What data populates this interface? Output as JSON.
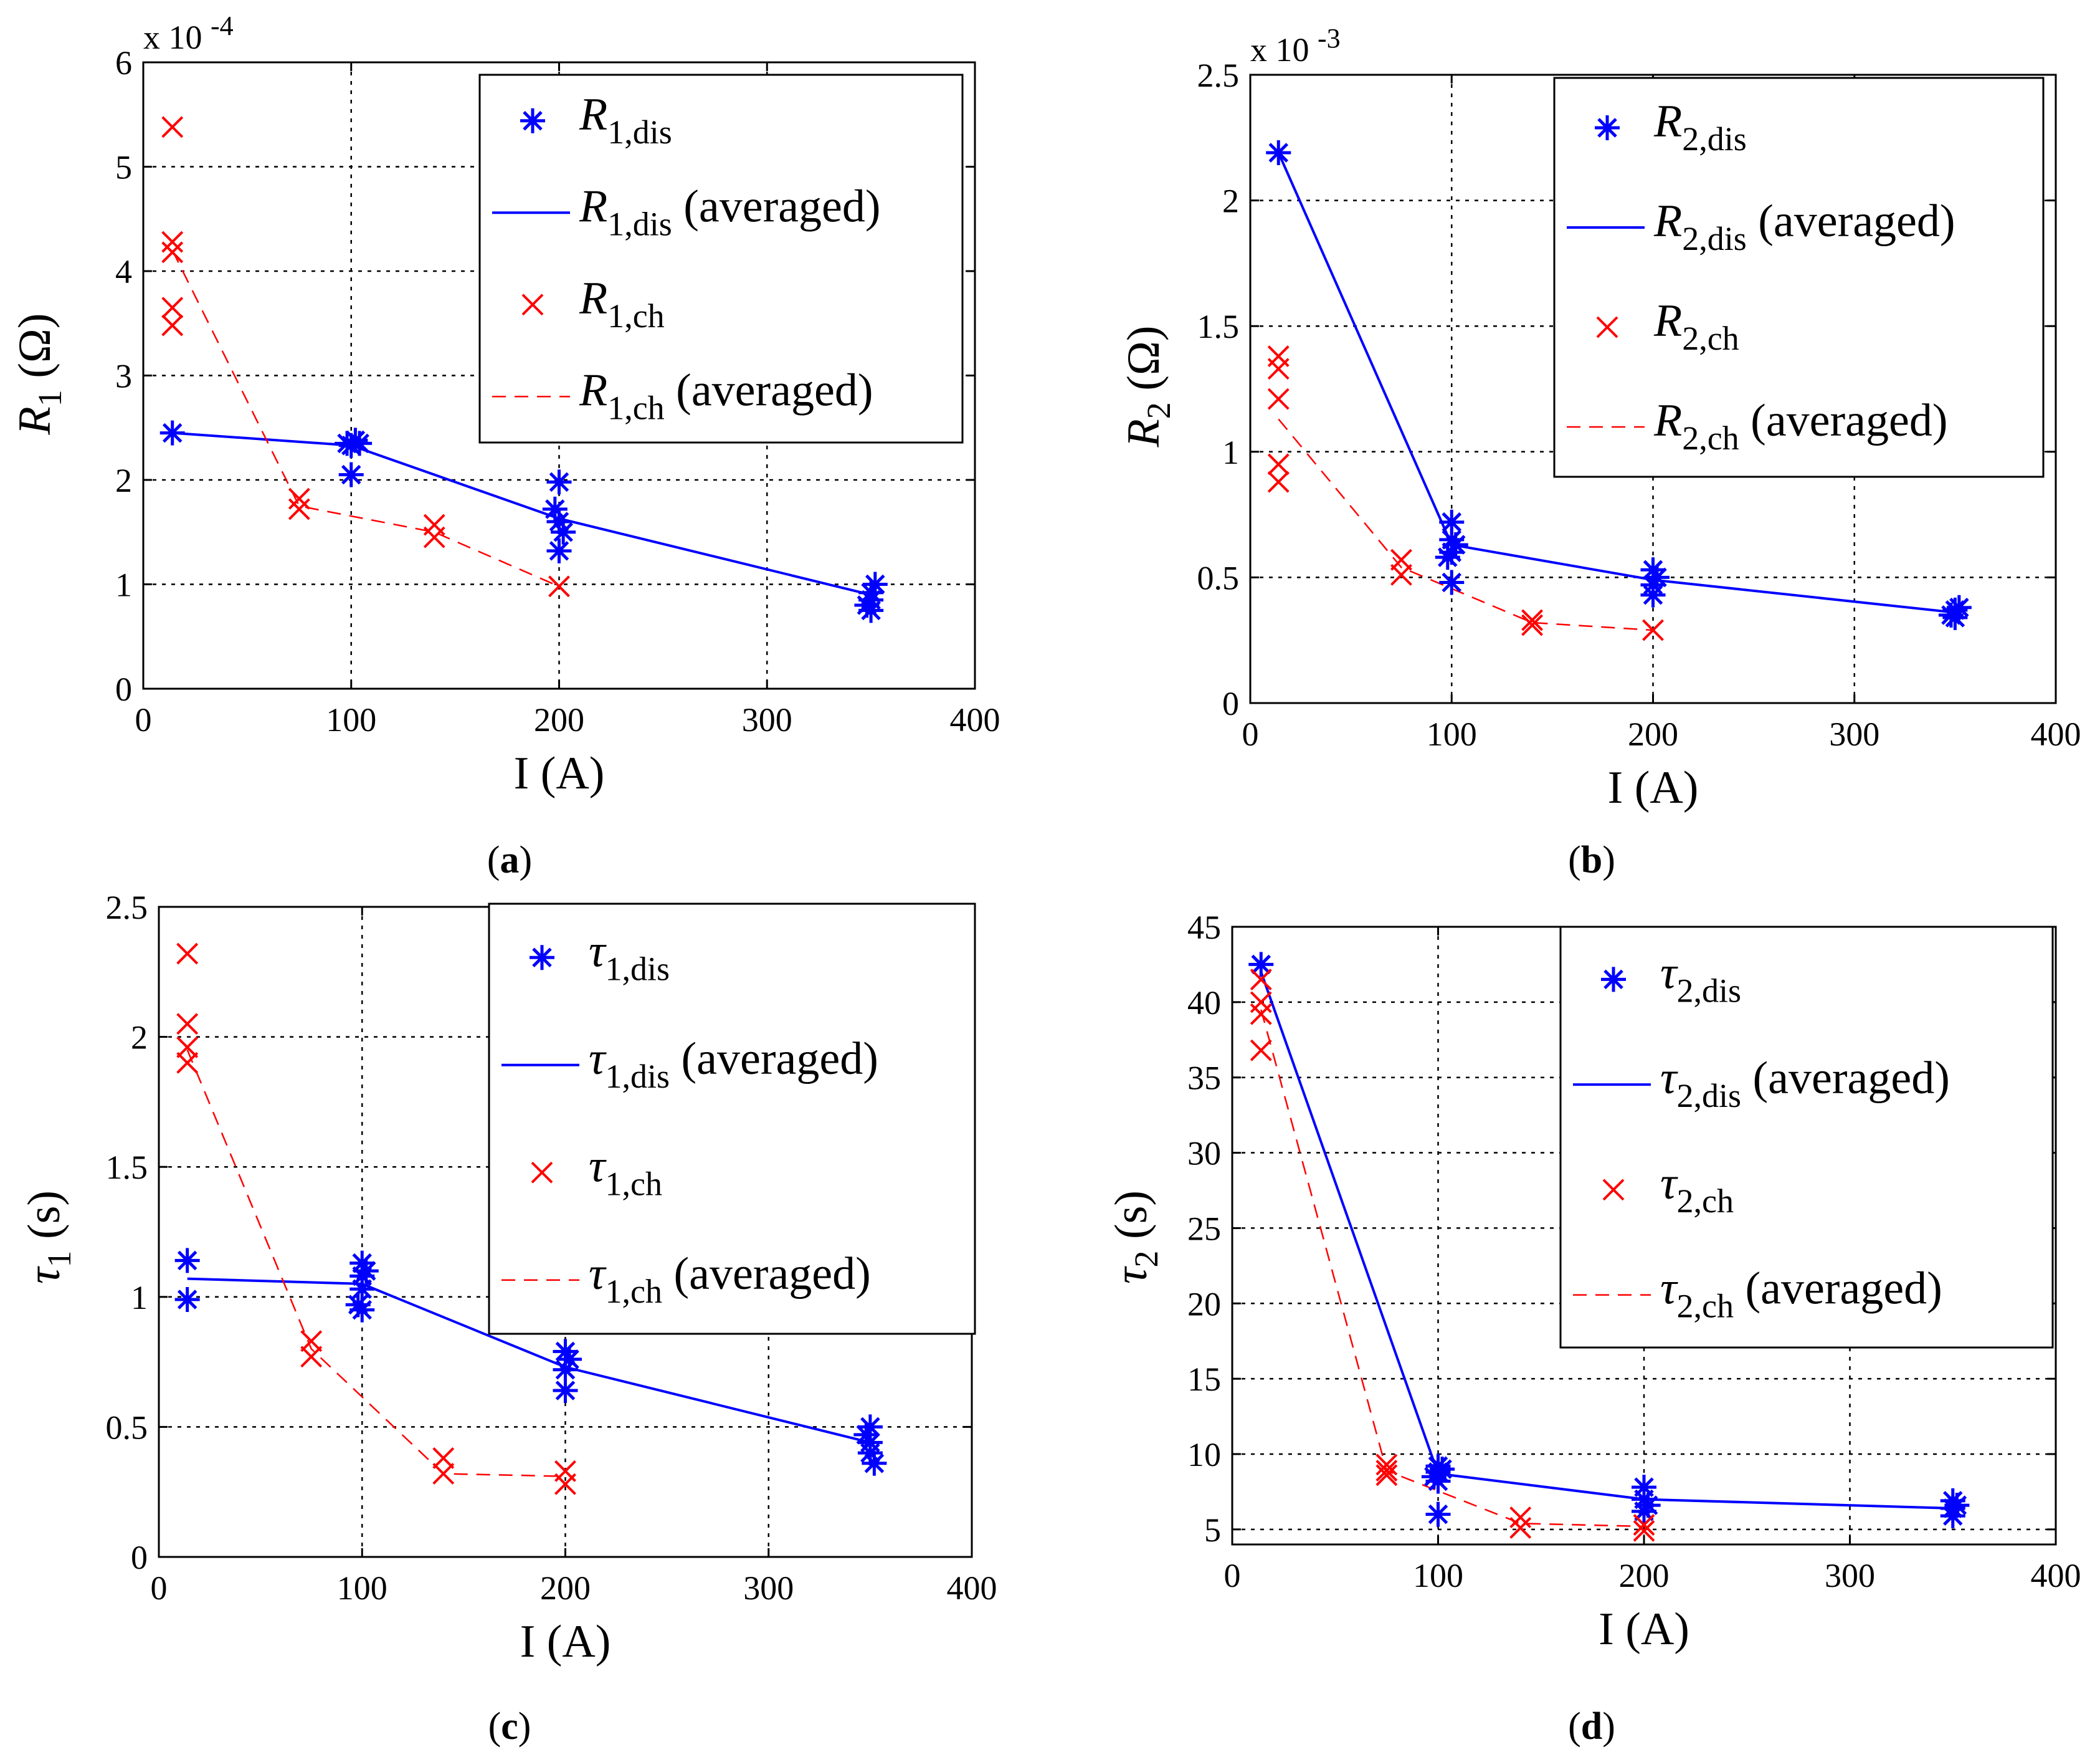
{
  "chart_data": [
    {
      "type": "scatter-line",
      "caption_letter": "a",
      "xlabel": "I (A)",
      "ylabel": "R",
      "ylabel_sub": "1",
      "ylabel_unit": "(Ω)",
      "multiplier": "x 10",
      "multiplier_exp": "-4",
      "xlim": [
        0,
        400
      ],
      "ylim": [
        0,
        6
      ],
      "xticks": [
        0,
        100,
        200,
        300,
        400
      ],
      "yticks": [
        0,
        1,
        2,
        3,
        4,
        5,
        6
      ],
      "ytick_labels": [
        "0",
        "1",
        "2",
        "3",
        "4",
        "5",
        "6"
      ],
      "grid": true,
      "legend_pos": "top-right",
      "legend": [
        {
          "base": "R",
          "sub": "1,dis",
          "suffix": ""
        },
        {
          "base": "R",
          "sub": "1,dis",
          "suffix": "(averaged)"
        },
        {
          "base": "R",
          "sub": "1,ch",
          "suffix": ""
        },
        {
          "base": "R",
          "sub": "1,ch",
          "suffix": "(averaged)"
        }
      ],
      "dis_points": [
        [
          14,
          2.45
        ],
        [
          98,
          2.35
        ],
        [
          100,
          2.05
        ],
        [
          100,
          2.33
        ],
        [
          102,
          2.38
        ],
        [
          104,
          2.35
        ],
        [
          200,
          1.98
        ],
        [
          200,
          1.6
        ],
        [
          200,
          1.32
        ],
        [
          202,
          1.5
        ],
        [
          198,
          1.72
        ],
        [
          350,
          0.75
        ],
        [
          350,
          0.85
        ],
        [
          350,
          0.92
        ],
        [
          352,
          1.0
        ],
        [
          348,
          0.8
        ]
      ],
      "dis_avg": [
        [
          14,
          2.45
        ],
        [
          100,
          2.33
        ],
        [
          200,
          1.63
        ],
        [
          350,
          0.9
        ]
      ],
      "ch_points": [
        [
          14,
          5.38
        ],
        [
          14,
          4.28
        ],
        [
          14,
          4.18
        ],
        [
          14,
          3.65
        ],
        [
          14,
          3.48
        ],
        [
          75,
          1.82
        ],
        [
          75,
          1.72
        ],
        [
          140,
          1.57
        ],
        [
          140,
          1.45
        ],
        [
          200,
          0.98
        ]
      ],
      "ch_avg": [
        [
          14,
          4.2
        ],
        [
          75,
          1.75
        ],
        [
          140,
          1.5
        ],
        [
          200,
          0.98
        ]
      ]
    },
    {
      "type": "scatter-line",
      "caption_letter": "b",
      "xlabel": "I (A)",
      "ylabel": "R",
      "ylabel_sub": "2",
      "ylabel_unit": "(Ω)",
      "multiplier": "x 10",
      "multiplier_exp": "-3",
      "xlim": [
        0,
        400
      ],
      "ylim": [
        0,
        2.5
      ],
      "xticks": [
        0,
        100,
        200,
        300,
        400
      ],
      "yticks": [
        0,
        0.5,
        1,
        1.5,
        2,
        2.5
      ],
      "ytick_labels": [
        "0",
        "0.5",
        "1",
        "1.5",
        "2",
        "2.5"
      ],
      "grid": true,
      "legend_pos": "top-right",
      "legend": [
        {
          "base": "R",
          "sub": "2,dis",
          "suffix": ""
        },
        {
          "base": "R",
          "sub": "2,dis",
          "suffix": "(averaged)"
        },
        {
          "base": "R",
          "sub": "2,ch",
          "suffix": ""
        },
        {
          "base": "R",
          "sub": "2,ch",
          "suffix": "(averaged)"
        }
      ],
      "dis_points": [
        [
          14,
          2.19
        ],
        [
          100,
          0.72
        ],
        [
          100,
          0.65
        ],
        [
          100,
          0.6
        ],
        [
          102,
          0.63
        ],
        [
          98,
          0.58
        ],
        [
          100,
          0.48
        ],
        [
          200,
          0.53
        ],
        [
          200,
          0.47
        ],
        [
          200,
          0.43
        ],
        [
          202,
          0.5
        ],
        [
          350,
          0.34
        ],
        [
          350,
          0.37
        ],
        [
          352,
          0.38
        ],
        [
          348,
          0.35
        ]
      ],
      "dis_avg": [
        [
          14,
          2.19
        ],
        [
          100,
          0.63
        ],
        [
          200,
          0.49
        ],
        [
          350,
          0.36
        ]
      ],
      "ch_points": [
        [
          14,
          1.38
        ],
        [
          14,
          1.33
        ],
        [
          14,
          1.21
        ],
        [
          14,
          0.95
        ],
        [
          14,
          0.88
        ],
        [
          75,
          0.57
        ],
        [
          75,
          0.51
        ],
        [
          140,
          0.33
        ],
        [
          140,
          0.31
        ],
        [
          200,
          0.29
        ]
      ],
      "ch_avg": [
        [
          14,
          1.13
        ],
        [
          75,
          0.54
        ],
        [
          140,
          0.32
        ],
        [
          200,
          0.29
        ]
      ]
    },
    {
      "type": "scatter-line",
      "caption_letter": "c",
      "xlabel": "I (A)",
      "ylabel": "τ",
      "ylabel_sub": "1",
      "ylabel_unit": "(s)",
      "multiplier": "",
      "multiplier_exp": "",
      "xlim": [
        0,
        400
      ],
      "ylim": [
        0,
        2.5
      ],
      "xticks": [
        0,
        100,
        200,
        300,
        400
      ],
      "yticks": [
        0,
        0.5,
        1,
        1.5,
        2,
        2.5
      ],
      "ytick_labels": [
        "0",
        "0.5",
        "1",
        "1.5",
        "2",
        "2.5"
      ],
      "grid": true,
      "legend_pos": "top-right",
      "legend": [
        {
          "base": "τ",
          "sub": "1,dis",
          "suffix": ""
        },
        {
          "base": "τ",
          "sub": "1,dis",
          "suffix": "(averaged)"
        },
        {
          "base": "τ",
          "sub": "1,ch",
          "suffix": ""
        },
        {
          "base": "τ",
          "sub": "1,ch",
          "suffix": "(averaged)"
        }
      ],
      "dis_points": [
        [
          14,
          1.14
        ],
        [
          14,
          0.99
        ],
        [
          100,
          1.13
        ],
        [
          100,
          1.08
        ],
        [
          100,
          1.03
        ],
        [
          102,
          1.1
        ],
        [
          98,
          0.97
        ],
        [
          100,
          0.95
        ],
        [
          200,
          0.79
        ],
        [
          200,
          0.72
        ],
        [
          200,
          0.64
        ],
        [
          202,
          0.76
        ],
        [
          350,
          0.5
        ],
        [
          350,
          0.44
        ],
        [
          350,
          0.4
        ],
        [
          352,
          0.36
        ],
        [
          348,
          0.47
        ]
      ],
      "dis_avg": [
        [
          14,
          1.07
        ],
        [
          100,
          1.05
        ],
        [
          200,
          0.73
        ],
        [
          350,
          0.44
        ]
      ],
      "ch_points": [
        [
          14,
          2.32
        ],
        [
          14,
          2.05
        ],
        [
          14,
          1.96
        ],
        [
          14,
          1.9
        ],
        [
          75,
          0.83
        ],
        [
          75,
          0.77
        ],
        [
          140,
          0.38
        ],
        [
          140,
          0.32
        ],
        [
          200,
          0.33
        ],
        [
          200,
          0.28
        ]
      ],
      "ch_avg": [
        [
          14,
          1.95
        ],
        [
          75,
          0.8
        ],
        [
          140,
          0.32
        ],
        [
          200,
          0.31
        ]
      ]
    },
    {
      "type": "scatter-line",
      "caption_letter": "d",
      "xlabel": "I (A)",
      "ylabel": "τ",
      "ylabel_sub": "2",
      "ylabel_unit": "(s)",
      "multiplier": "",
      "multiplier_exp": "",
      "xlim": [
        0,
        400
      ],
      "ylim": [
        4,
        45
      ],
      "xticks": [
        0,
        100,
        200,
        300,
        400
      ],
      "yticks": [
        5,
        10,
        15,
        20,
        25,
        30,
        35,
        40,
        45
      ],
      "ytick_labels": [
        "5",
        "10",
        "15",
        "20",
        "25",
        "30",
        "35",
        "40",
        "45"
      ],
      "grid": true,
      "legend_pos": "top-right",
      "legend": [
        {
          "base": "τ",
          "sub": "2,dis",
          "suffix": ""
        },
        {
          "base": "τ",
          "sub": "2,dis",
          "suffix": "(averaged)"
        },
        {
          "base": "τ",
          "sub": "2,ch",
          "suffix": ""
        },
        {
          "base": "τ",
          "sub": "2,ch",
          "suffix": "(averaged)"
        }
      ],
      "dis_points": [
        [
          14,
          42.5
        ],
        [
          100,
          9.2
        ],
        [
          100,
          8.8
        ],
        [
          100,
          8.2
        ],
        [
          102,
          9.0
        ],
        [
          98,
          8.5
        ],
        [
          100,
          6.0
        ],
        [
          200,
          7.8
        ],
        [
          200,
          7.0
        ],
        [
          200,
          6.2
        ],
        [
          202,
          6.6
        ],
        [
          350,
          6.9
        ],
        [
          350,
          6.4
        ],
        [
          350,
          5.9
        ],
        [
          352,
          6.6
        ]
      ],
      "dis_avg": [
        [
          14,
          42
        ],
        [
          100,
          8.7
        ],
        [
          200,
          7.0
        ],
        [
          350,
          6.4
        ]
      ],
      "ch_points": [
        [
          14,
          41.5
        ],
        [
          14,
          40.0
        ],
        [
          14,
          39.2
        ],
        [
          14,
          36.8
        ],
        [
          75,
          9.3
        ],
        [
          75,
          8.9
        ],
        [
          75,
          8.6
        ],
        [
          140,
          5.8
        ],
        [
          140,
          5.1
        ],
        [
          200,
          5.3
        ],
        [
          200,
          4.9
        ]
      ],
      "ch_avg": [
        [
          14,
          39.5
        ],
        [
          75,
          8.9
        ],
        [
          140,
          5.4
        ],
        [
          200,
          5.2
        ]
      ]
    }
  ]
}
